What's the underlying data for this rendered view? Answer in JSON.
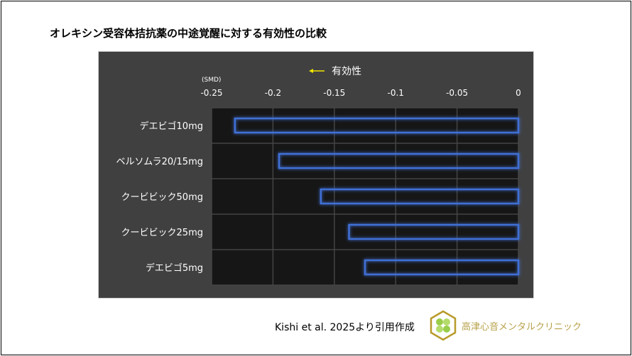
{
  "title": "オレキシン受容体拮抗薬の中途覚醒に対する有効性の比較",
  "citation": "Kishi et al. 2025より引用作成",
  "clinic_name": "高津心音メンタルクリニック",
  "chart_data": {
    "type": "bar",
    "orientation": "horizontal",
    "categories": [
      "デエビゴ10mg",
      "ベルソムラ20/15mg",
      "クービビック50mg",
      "クービビック25mg",
      "デエビゴ5mg"
    ],
    "values": [
      -0.231,
      -0.195,
      -0.161,
      -0.138,
      -0.125
    ],
    "unit_label": "(SMD)",
    "annotation": "有効性",
    "annotation_arrow": "left",
    "xlim": [
      -0.25,
      0
    ],
    "xticks": [
      "-0.25",
      "-0.2",
      "-0.15",
      "-0.1",
      "-0.05",
      "0"
    ],
    "tick_values": [
      -0.25,
      -0.2,
      -0.15,
      -0.1,
      -0.05,
      0
    ],
    "axis_position": "top",
    "grid": true,
    "colors": {
      "background": "#404040",
      "plot": "#161616",
      "bar_outline": "#3f6fd6",
      "arrow": "#f2e600",
      "text": "#ffffff"
    }
  }
}
